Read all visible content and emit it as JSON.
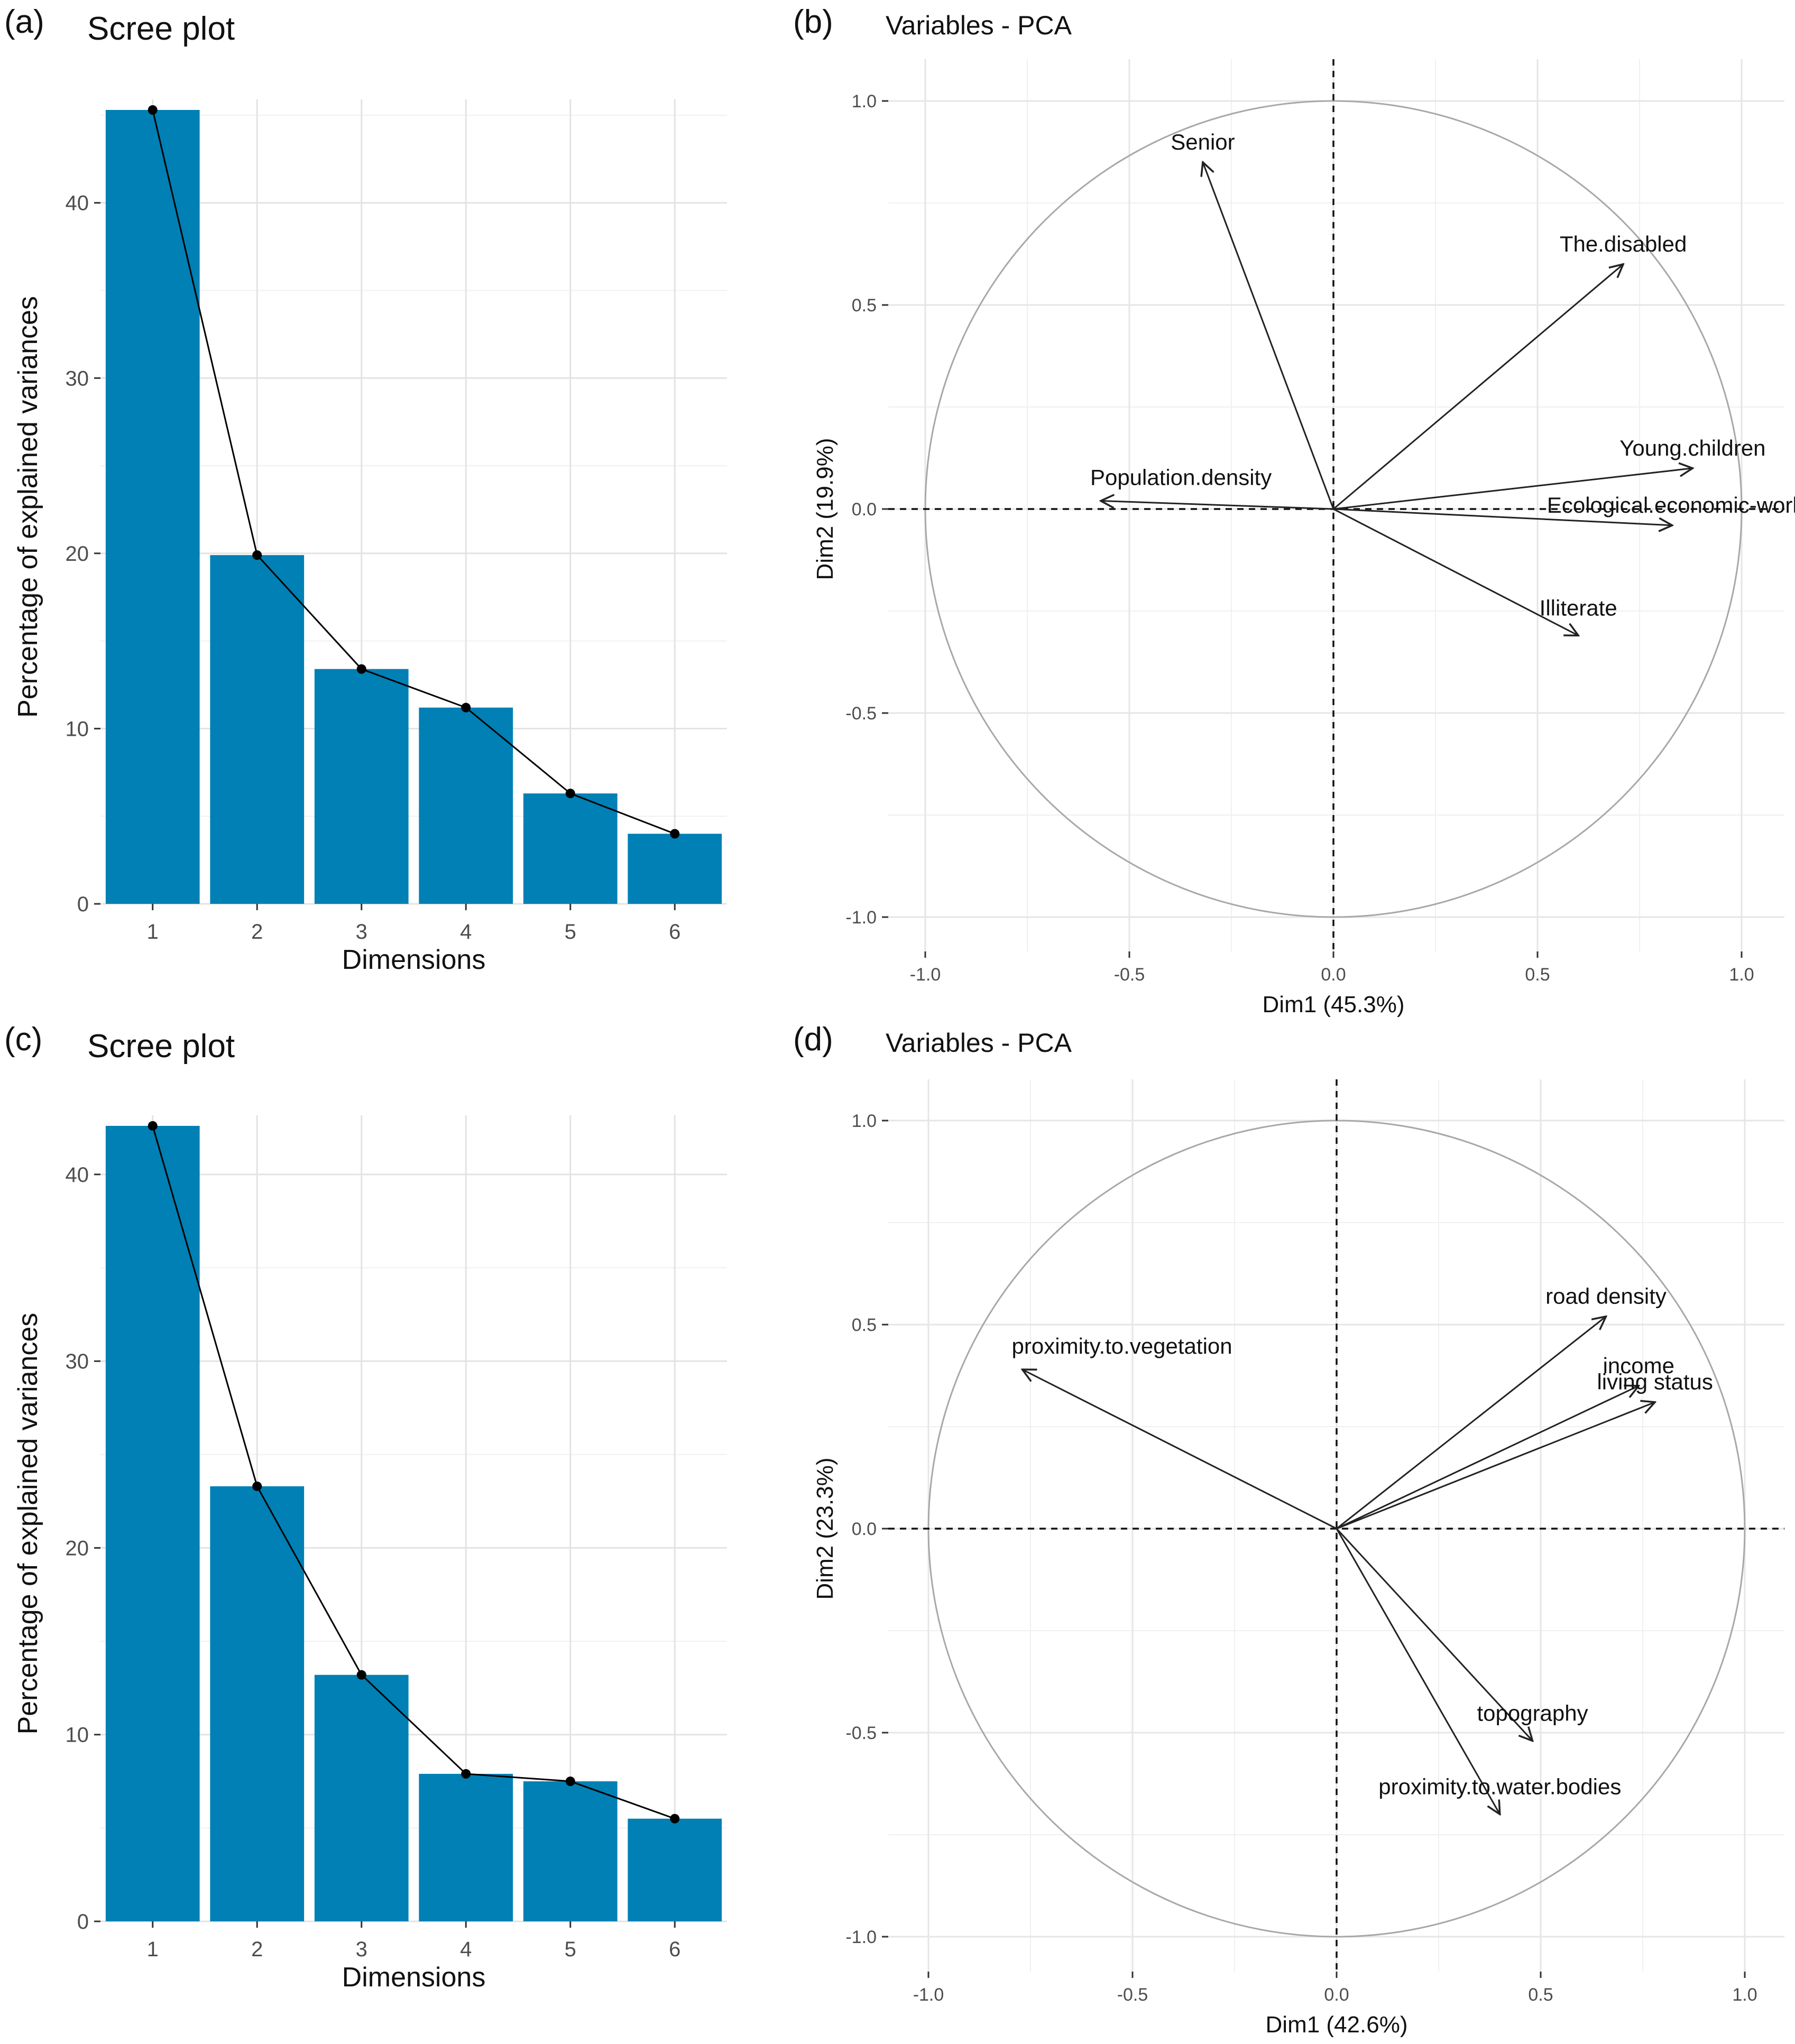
{
  "chart_data": [
    {
      "panel_label": "(a)",
      "type": "bar",
      "title": "Scree plot",
      "xlabel": "Dimensions",
      "ylabel": "Percentage of explained variances",
      "categories": [
        "1",
        "2",
        "3",
        "4",
        "5",
        "6"
      ],
      "values": [
        45.3,
        19.9,
        13.4,
        11.2,
        6.3,
        4.0
      ],
      "ylim": [
        0,
        45.3
      ],
      "yticks": [
        0,
        10,
        20,
        30,
        40
      ],
      "grid": true,
      "bar_color": "#0080b4",
      "line_color": "#000000"
    },
    {
      "panel_label": "(b)",
      "type": "vector",
      "title": "Variables - PCA",
      "xlabel": "Dim1 (45.3%)",
      "ylabel": "Dim2 (19.9%)",
      "xlim": [
        -1.0,
        1.0
      ],
      "ylim": [
        -1.0,
        1.0
      ],
      "xticks": [
        -1.0,
        -0.5,
        0.0,
        0.5,
        1.0
      ],
      "yticks": [
        -1.0,
        -0.5,
        0.0,
        0.5,
        1.0
      ],
      "tick_labels": [
        "-1.0",
        "-0.5",
        "0.0",
        "0.5",
        "1.0"
      ],
      "vectors": [
        {
          "name": "Senior",
          "x": -0.32,
          "y": 0.85
        },
        {
          "name": "The.disabled",
          "x": 0.71,
          "y": 0.6
        },
        {
          "name": "Young.children",
          "x": 0.88,
          "y": 0.1
        },
        {
          "name": "Ecological.economic-worl",
          "x": 0.83,
          "y": -0.04
        },
        {
          "name": "Population.density",
          "x": -0.57,
          "y": 0.02
        },
        {
          "name": "Illiterate",
          "x": 0.6,
          "y": -0.31
        }
      ]
    },
    {
      "panel_label": "(c)",
      "type": "bar",
      "title": "Scree plot",
      "xlabel": "Dimensions",
      "ylabel": "Percentage of explained variances",
      "categories": [
        "1",
        "2",
        "3",
        "4",
        "5",
        "6"
      ],
      "values": [
        42.6,
        23.3,
        13.2,
        7.9,
        7.5,
        5.5
      ],
      "ylim": [
        0,
        42.6
      ],
      "yticks": [
        0,
        10,
        20,
        30,
        40
      ],
      "grid": true,
      "bar_color": "#0080b4",
      "line_color": "#000000"
    },
    {
      "panel_label": "(d)",
      "type": "vector",
      "title": "Variables - PCA",
      "xlabel": "Dim1 (42.6%)",
      "ylabel": "Dim2 (23.3%)",
      "xlim": [
        -1.0,
        1.0
      ],
      "ylim": [
        -1.0,
        1.0
      ],
      "xticks": [
        -1.0,
        -0.5,
        0.0,
        0.5,
        1.0
      ],
      "yticks": [
        -1.0,
        -0.5,
        0.0,
        0.5,
        1.0
      ],
      "tick_labels": [
        "-1.0",
        "-0.5",
        "0.0",
        "0.5",
        "1.0"
      ],
      "vectors": [
        {
          "name": "road density",
          "x": 0.66,
          "y": 0.52
        },
        {
          "name": "income",
          "x": 0.74,
          "y": 0.35
        },
        {
          "name": "living status",
          "x": 0.78,
          "y": 0.31
        },
        {
          "name": "proximity.to.vegetation",
          "x": -0.77,
          "y": 0.39
        },
        {
          "name": "topography",
          "x": 0.48,
          "y": -0.52
        },
        {
          "name": "proximity.to.water.bodies",
          "x": 0.4,
          "y": -0.7
        }
      ]
    }
  ]
}
